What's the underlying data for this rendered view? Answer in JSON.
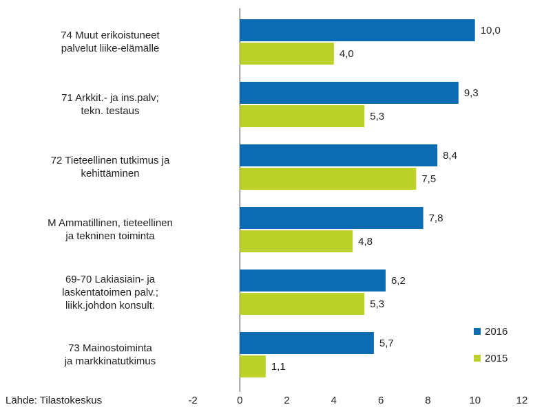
{
  "chart_data": {
    "type": "bar",
    "orientation": "horizontal",
    "categories": [
      "74 Muut erikoistuneet\npalvelut liike-elämälle",
      "71 Arkkit.- ja ins.palv;\ntekn. testaus",
      "72 Tieteellinen tutkimus ja\nkehittäminen",
      "M Ammatillinen, tieteellinen\nja tekninen toiminta",
      "69-70 Lakiasiain- ja\nlaskentatoimen palv.;\nliikk.johdon konsult.",
      "73 Mainostoiminta\nja markkinatutkimus"
    ],
    "series": [
      {
        "name": "2016",
        "color": "#0a6db3",
        "values": [
          10.0,
          9.3,
          8.4,
          7.8,
          6.2,
          5.7
        ],
        "value_labels": [
          "10,0",
          "9,3",
          "8,4",
          "7,8",
          "6,2",
          "5,7"
        ]
      },
      {
        "name": "2015",
        "color": "#bcd22b",
        "values": [
          4.0,
          5.3,
          7.5,
          4.8,
          5.3,
          1.1
        ],
        "value_labels": [
          "4,0",
          "5,3",
          "7,5",
          "4,8",
          "5,3",
          "1,1"
        ]
      }
    ],
    "xlim": [
      -2,
      12
    ],
    "xticks": [
      -2,
      0,
      2,
      4,
      6,
      8,
      10,
      12
    ],
    "source": "Lähde: Tilastokeskus",
    "legend": "lower right"
  }
}
